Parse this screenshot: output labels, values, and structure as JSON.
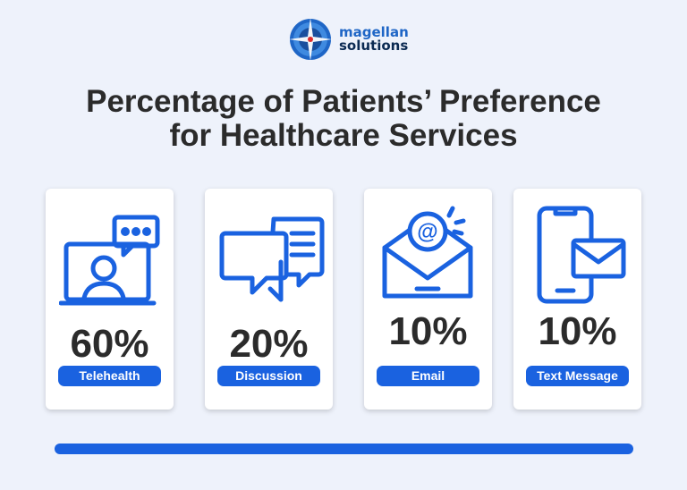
{
  "brand": {
    "line1": "magellan",
    "line2": "solutions"
  },
  "title": {
    "line1": "Percentage of Patients’ Preference",
    "line2": "for Healthcare Services"
  },
  "colors": {
    "accent": "#1a62e0",
    "text": "#2b2b2b",
    "background": "#eef2fb"
  },
  "cards": [
    {
      "percent": "60%",
      "label": "Telehealth",
      "icon": "telehealth-icon"
    },
    {
      "percent": "20%",
      "label": "Discussion",
      "icon": "chat-bubbles-icon"
    },
    {
      "percent": "10%",
      "label": "Email",
      "icon": "email-envelope-icon"
    },
    {
      "percent": "10%",
      "label": "Text Message",
      "icon": "phone-message-icon"
    }
  ]
}
